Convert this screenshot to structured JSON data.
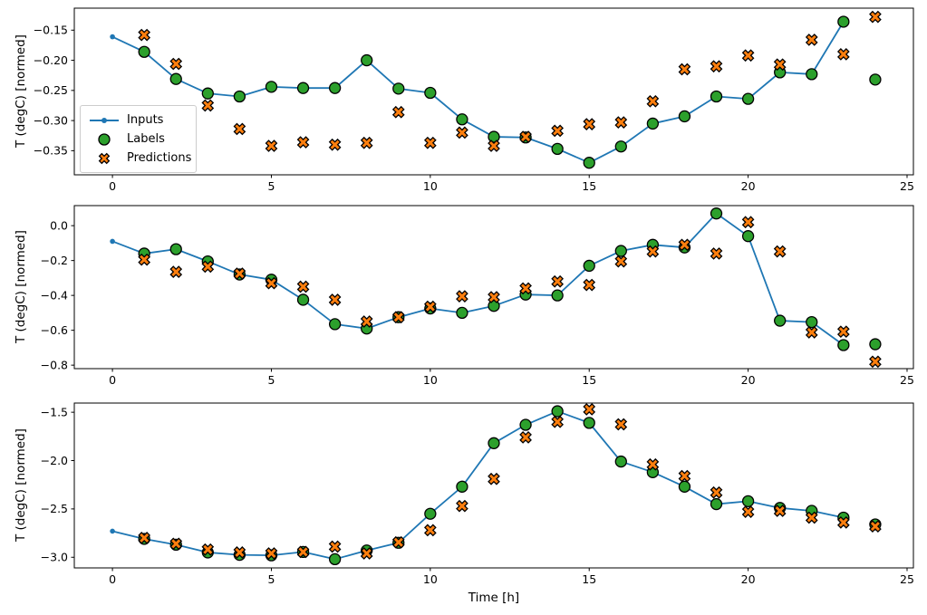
{
  "figure": {
    "background": "#ffffff",
    "y_axis_label": "T (degC) [normed]",
    "x_axis_label": "Time [h]"
  },
  "colors": {
    "inputs": "#1f77b4",
    "labels": "#2ca02c",
    "predictions": "#ff7f0e",
    "marker_edge": "#000000",
    "axes": "#000000",
    "legend_border": "#cccccc"
  },
  "legend": {
    "location": "upper-left-subplot-1",
    "items": [
      {
        "key": "inputs",
        "label": "Inputs",
        "marker": "line-with-dot"
      },
      {
        "key": "labels",
        "label": "Labels",
        "marker": "circle"
      },
      {
        "key": "predictions",
        "label": "Predictions",
        "marker": "X"
      }
    ]
  },
  "chart_data": [
    {
      "type": "line",
      "title": "",
      "ylabel": "T (degC) [normed]",
      "xlabel": "",
      "grid": false,
      "xlim": [
        -1.2,
        25.2
      ],
      "ylim": [
        -0.39,
        -0.1135
      ],
      "xticks": [
        0,
        5,
        10,
        15,
        20,
        25
      ],
      "xticklabels": [
        "0",
        "5",
        "10",
        "15",
        "20",
        "25"
      ],
      "yticks": [
        -0.15,
        -0.2,
        -0.25,
        -0.3,
        -0.35
      ],
      "yticklabels": [
        "−0.15",
        "−0.20",
        "−0.25",
        "−0.30",
        "−0.35"
      ],
      "series": [
        {
          "name": "Inputs",
          "type": "line",
          "marker": "dot",
          "x": [
            0,
            1,
            2,
            3,
            4,
            5,
            6,
            7,
            8,
            9,
            10,
            11,
            12,
            13,
            14,
            15,
            16,
            17,
            18,
            19,
            20,
            21,
            22,
            23
          ],
          "y": [
            -0.161,
            -0.186,
            -0.231,
            -0.255,
            -0.26,
            -0.244,
            -0.246,
            -0.246,
            -0.2,
            -0.247,
            -0.254,
            -0.298,
            -0.327,
            -0.328,
            -0.347,
            -0.37,
            -0.343,
            -0.305,
            -0.293,
            -0.26,
            -0.264,
            -0.22,
            -0.223,
            -0.136
          ]
        },
        {
          "name": "Labels",
          "type": "scatter",
          "marker": "circle",
          "x": [
            1,
            2,
            3,
            4,
            5,
            6,
            7,
            8,
            9,
            10,
            11,
            12,
            13,
            14,
            15,
            16,
            17,
            18,
            19,
            20,
            21,
            22,
            23,
            24
          ],
          "y": [
            -0.186,
            -0.231,
            -0.255,
            -0.26,
            -0.244,
            -0.246,
            -0.246,
            -0.2,
            -0.247,
            -0.254,
            -0.298,
            -0.327,
            -0.328,
            -0.347,
            -0.37,
            -0.343,
            -0.305,
            -0.293,
            -0.26,
            -0.264,
            -0.22,
            -0.223,
            -0.136,
            -0.232
          ]
        },
        {
          "name": "Predictions",
          "type": "scatter",
          "marker": "X",
          "x": [
            1,
            2,
            3,
            4,
            5,
            6,
            7,
            8,
            9,
            10,
            11,
            12,
            13,
            14,
            15,
            16,
            17,
            18,
            19,
            20,
            21,
            22,
            23,
            24
          ],
          "y": [
            -0.158,
            -0.206,
            -0.275,
            -0.314,
            -0.342,
            -0.336,
            -0.34,
            -0.337,
            -0.286,
            -0.337,
            -0.32,
            -0.342,
            -0.327,
            -0.317,
            -0.306,
            -0.303,
            -0.268,
            -0.215,
            -0.21,
            -0.192,
            -0.207,
            -0.166,
            -0.19,
            -0.128
          ]
        }
      ]
    },
    {
      "type": "line",
      "title": "",
      "ylabel": "T (degC) [normed]",
      "xlabel": "",
      "grid": false,
      "xlim": [
        -1.2,
        25.2
      ],
      "ylim": [
        -0.82,
        0.115
      ],
      "xticks": [
        0,
        5,
        10,
        15,
        20,
        25
      ],
      "xticklabels": [
        "0",
        "5",
        "10",
        "15",
        "20",
        "25"
      ],
      "yticks": [
        0.0,
        -0.2,
        -0.4,
        -0.6,
        -0.8
      ],
      "yticklabels": [
        "0.0",
        "−0.2",
        "−0.4",
        "−0.6",
        "−0.8"
      ],
      "series": [
        {
          "name": "Inputs",
          "type": "line",
          "marker": "dot",
          "x": [
            0,
            1,
            2,
            3,
            4,
            5,
            6,
            7,
            8,
            9,
            10,
            11,
            12,
            13,
            14,
            15,
            16,
            17,
            18,
            19,
            20,
            21,
            22,
            23
          ],
          "y": [
            -0.09,
            -0.16,
            -0.135,
            -0.205,
            -0.28,
            -0.31,
            -0.425,
            -0.565,
            -0.59,
            -0.525,
            -0.475,
            -0.5,
            -0.46,
            -0.395,
            -0.4,
            -0.23,
            -0.145,
            -0.11,
            -0.125,
            0.07,
            -0.06,
            -0.545,
            -0.553,
            -0.685
          ]
        },
        {
          "name": "Labels",
          "type": "scatter",
          "marker": "circle",
          "x": [
            1,
            2,
            3,
            4,
            5,
            6,
            7,
            8,
            9,
            10,
            11,
            12,
            13,
            14,
            15,
            16,
            17,
            18,
            19,
            20,
            21,
            22,
            23,
            24
          ],
          "y": [
            -0.16,
            -0.135,
            -0.205,
            -0.28,
            -0.31,
            -0.425,
            -0.565,
            -0.59,
            -0.525,
            -0.475,
            -0.5,
            -0.46,
            -0.395,
            -0.4,
            -0.23,
            -0.145,
            -0.11,
            -0.125,
            0.07,
            -0.06,
            -0.545,
            -0.553,
            -0.685,
            -0.68
          ]
        },
        {
          "name": "Predictions",
          "type": "scatter",
          "marker": "X",
          "x": [
            1,
            2,
            3,
            4,
            5,
            6,
            7,
            8,
            9,
            10,
            11,
            12,
            13,
            14,
            15,
            16,
            17,
            18,
            19,
            20,
            21,
            22,
            23,
            24
          ],
          "y": [
            -0.195,
            -0.265,
            -0.235,
            -0.275,
            -0.33,
            -0.35,
            -0.425,
            -0.55,
            -0.525,
            -0.465,
            -0.405,
            -0.41,
            -0.36,
            -0.32,
            -0.34,
            -0.205,
            -0.148,
            -0.11,
            -0.16,
            0.02,
            -0.148,
            -0.612,
            -0.608,
            -0.78
          ]
        }
      ]
    },
    {
      "type": "line",
      "title": "",
      "ylabel": "T (degC) [normed]",
      "xlabel": "Time [h]",
      "grid": false,
      "xlim": [
        -1.2,
        25.2
      ],
      "ylim": [
        -3.11,
        -1.405
      ],
      "xticks": [
        0,
        5,
        10,
        15,
        20,
        25
      ],
      "xticklabels": [
        "0",
        "5",
        "10",
        "15",
        "20",
        "25"
      ],
      "yticks": [
        -1.5,
        -2.0,
        -2.5,
        -3.0
      ],
      "yticklabels": [
        "−1.5",
        "−2.0",
        "−2.5",
        "−3.0"
      ],
      "series": [
        {
          "name": "Inputs",
          "type": "line",
          "marker": "dot",
          "x": [
            0,
            1,
            2,
            3,
            4,
            5,
            6,
            7,
            8,
            9,
            10,
            11,
            12,
            13,
            14,
            15,
            16,
            17,
            18,
            19,
            20,
            21,
            22,
            23
          ],
          "y": [
            -2.73,
            -2.81,
            -2.87,
            -2.95,
            -2.975,
            -2.98,
            -2.945,
            -3.02,
            -2.93,
            -2.85,
            -2.55,
            -2.27,
            -1.82,
            -1.63,
            -1.49,
            -1.61,
            -2.01,
            -2.12,
            -2.27,
            -2.45,
            -2.42,
            -2.49,
            -2.52,
            -2.59
          ]
        },
        {
          "name": "Labels",
          "type": "scatter",
          "marker": "circle",
          "x": [
            1,
            2,
            3,
            4,
            5,
            6,
            7,
            8,
            9,
            10,
            11,
            12,
            13,
            14,
            15,
            16,
            17,
            18,
            19,
            20,
            21,
            22,
            23,
            24
          ],
          "y": [
            -2.81,
            -2.87,
            -2.95,
            -2.975,
            -2.98,
            -2.945,
            -3.02,
            -2.93,
            -2.85,
            -2.55,
            -2.27,
            -1.82,
            -1.63,
            -1.49,
            -1.61,
            -2.01,
            -2.12,
            -2.27,
            -2.45,
            -2.42,
            -2.49,
            -2.52,
            -2.59,
            -2.66
          ]
        },
        {
          "name": "Predictions",
          "type": "scatter",
          "marker": "X",
          "x": [
            1,
            2,
            3,
            4,
            5,
            6,
            7,
            8,
            9,
            10,
            11,
            12,
            13,
            14,
            15,
            16,
            17,
            18,
            19,
            20,
            21,
            22,
            23,
            24
          ],
          "y": [
            -2.8,
            -2.86,
            -2.92,
            -2.95,
            -2.96,
            -2.945,
            -2.89,
            -2.96,
            -2.845,
            -2.72,
            -2.47,
            -2.19,
            -1.76,
            -1.6,
            -1.47,
            -1.625,
            -2.04,
            -2.16,
            -2.33,
            -2.53,
            -2.52,
            -2.59,
            -2.64,
            -2.68
          ]
        }
      ]
    }
  ]
}
